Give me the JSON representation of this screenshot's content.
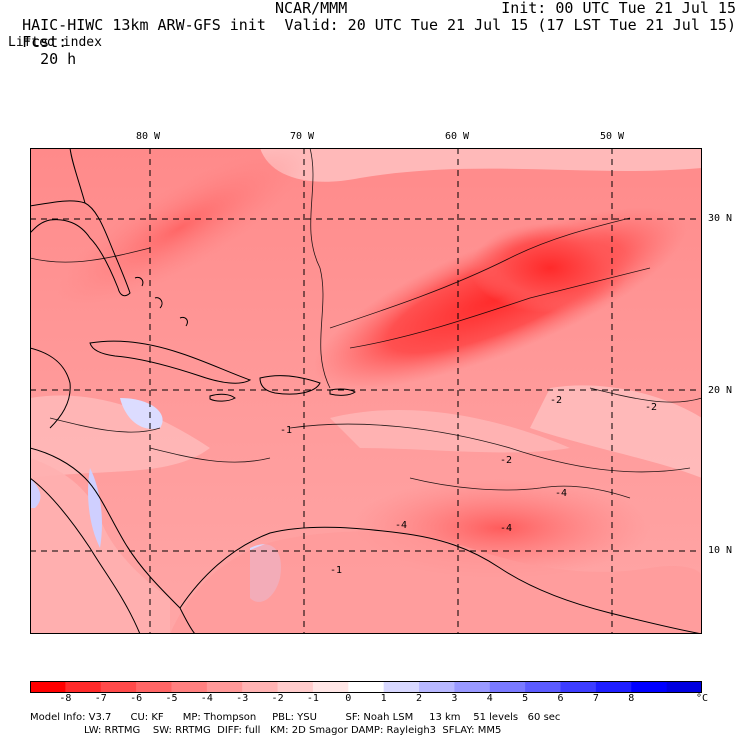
{
  "header": {
    "model": "HAIC-HIWC 13km ARW-GFS init",
    "org": "NCAR/MMM",
    "init": "Init: 00 UTC Tue 21 Jul 15",
    "fcst_label": "Fcst:",
    "fcst_value": "20 h",
    "valid": "Valid: 20 UTC Tue 21 Jul 15 (17 LST Tue 21 Jul 15)",
    "field": "Lifted index"
  },
  "map": {
    "lon_labels": [
      "80 W",
      "70 W",
      "60 W",
      "50 W"
    ],
    "lat_labels": [
      "30 N",
      "20 N",
      "10 N"
    ],
    "contour_labels": [
      "-1",
      "-2",
      "-2",
      "-2",
      "-4",
      "-4",
      "-4",
      "-1"
    ]
  },
  "colorbar": {
    "colors": [
      "#ff0000",
      "#ff2a2a",
      "#ff4a4a",
      "#ff6666",
      "#ff8080",
      "#ff9999",
      "#ffb3b3",
      "#ffcccc",
      "#ffe6e6",
      "#ffffff",
      "#d8d8ff",
      "#b8b8ff",
      "#9999ff",
      "#7a7aff",
      "#5c5cff",
      "#3d3dff",
      "#1e1eff",
      "#0000ff",
      "#0000e0"
    ],
    "ticks": [
      "-8",
      "-7",
      "-6",
      "-5",
      "-4",
      "-3",
      "-2",
      "-1",
      "0",
      "1",
      "2",
      "3",
      "4",
      "5",
      "6",
      "7",
      "8"
    ],
    "unit": "°C"
  },
  "footer": {
    "line1": "Model Info: V3.7      CU: KF      MP: Thompson     PBL: YSU         SF: Noah LSM     13 km    51 levels   60 sec",
    "line2": "                 LW: RRTMG    SW: RRTMG  DIFF: full   KM: 2D Smagor DAMP: Rayleigh3  SFLAY: MM5"
  }
}
